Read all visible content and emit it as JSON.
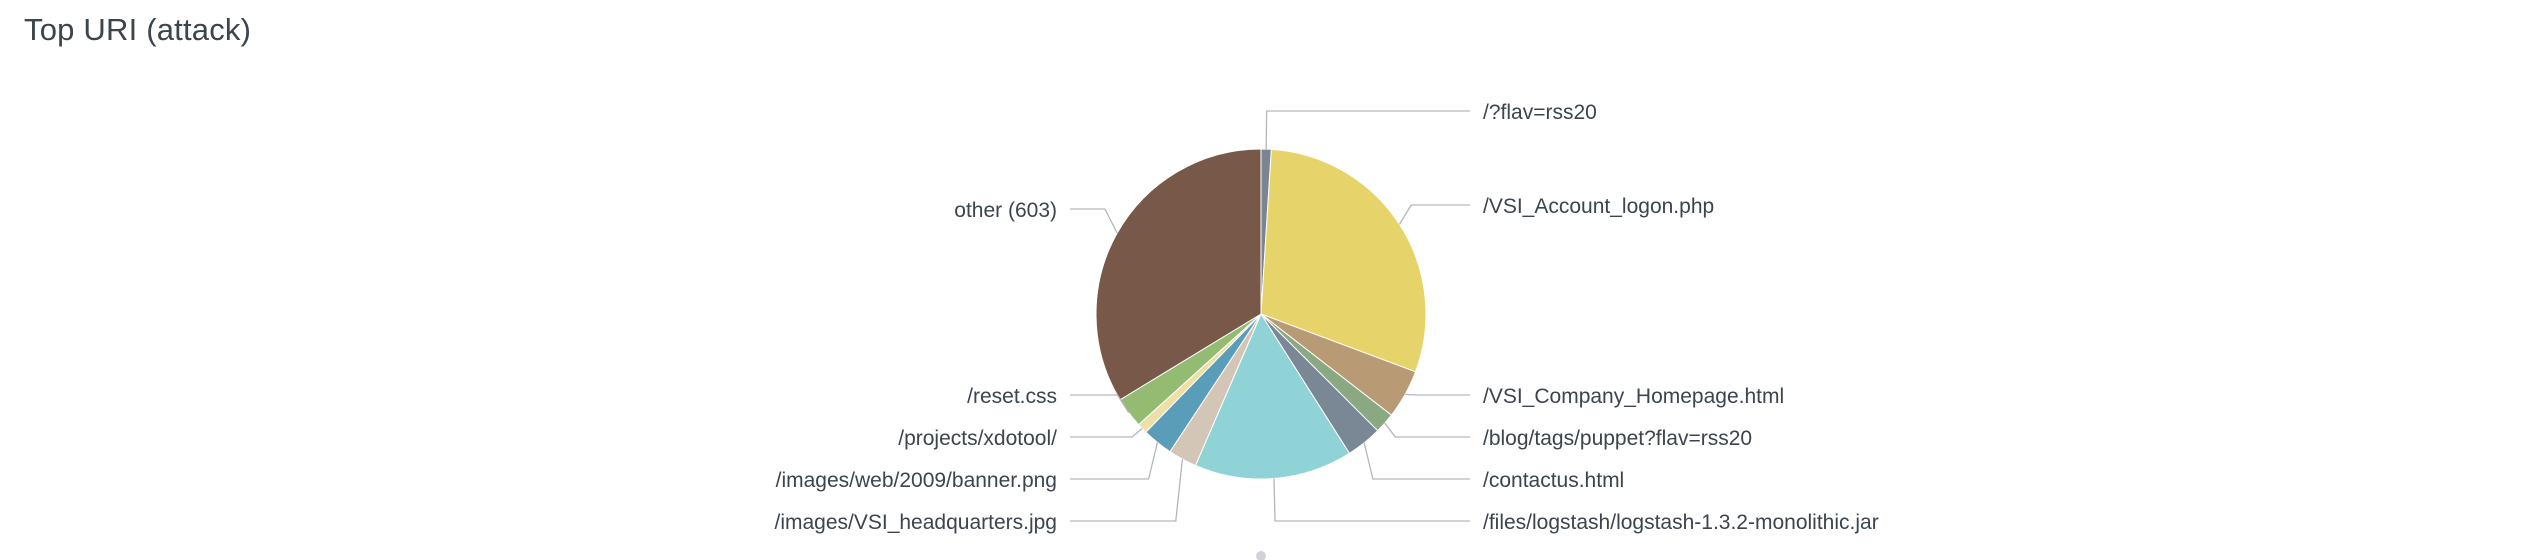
{
  "panel": {
    "title": "Top URI (attack)"
  },
  "chart_data": {
    "type": "pie",
    "title": "Top URI (attack)",
    "other_label": "other (603)",
    "slices": [
      {
        "label": "/?flav=rss20",
        "share": 0.01,
        "color": "#7b8591"
      },
      {
        "label": "/VSI_Account_logon.php",
        "share": 0.297,
        "color": "#e6d46a"
      },
      {
        "label": "/VSI_Company_Homepage.html",
        "share": 0.048,
        "color": "#b89a74"
      },
      {
        "label": "/blog/tags/puppet?flav=rss20",
        "share": 0.02,
        "color": "#8aa882"
      },
      {
        "label": "/contactus.html",
        "share": 0.035,
        "color": "#7a8794"
      },
      {
        "label": "/files/logstash/logstash-1.3.2-monolithic.jar",
        "share": 0.155,
        "color": "#8fd3d7"
      },
      {
        "label": "/images/VSI_headquarters.jpg",
        "share": 0.028,
        "color": "#d4c6b6"
      },
      {
        "label": "/images/web/2009/banner.png",
        "share": 0.03,
        "color": "#5a9db8"
      },
      {
        "label": "/projects/xdotool/",
        "share": 0.01,
        "color": "#ede0a6"
      },
      {
        "label": "/reset.css",
        "share": 0.03,
        "color": "#94bb72"
      },
      {
        "label": "other (603)",
        "share": 0.337,
        "color": "#775849"
      }
    ]
  }
}
